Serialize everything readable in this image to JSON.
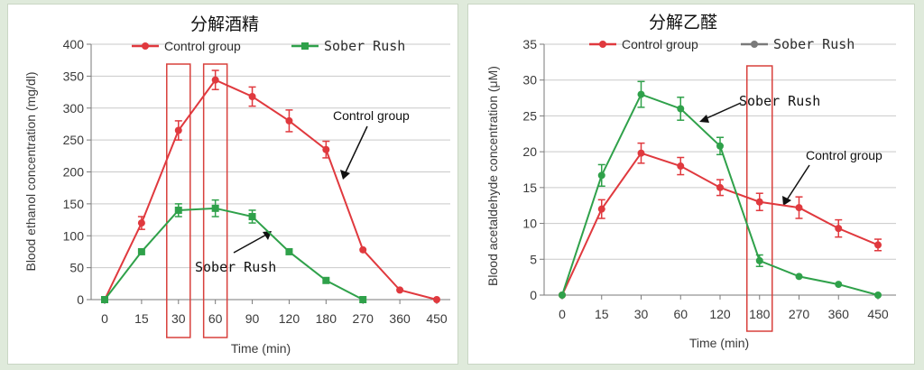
{
  "colors": {
    "control": "#e0393e",
    "sober": "#2fa14a",
    "highlight": "#d8403c",
    "grid": "#c9c9c9",
    "axis": "#7a7a7a"
  },
  "chart_data": [
    {
      "type": "line",
      "title": "分解酒精",
      "xlabel": "Time (min)",
      "ylabel": "Blood ethanol concentration (mg/dl)",
      "categories": [
        "0",
        "15",
        "30",
        "60",
        "90",
        "120",
        "180",
        "270",
        "360",
        "450"
      ],
      "ylim": [
        0,
        400
      ],
      "yticks": [
        0,
        50,
        100,
        150,
        200,
        250,
        300,
        350,
        400
      ],
      "grid": "horizontal",
      "legend": "top",
      "series": [
        {
          "name": "Control group",
          "color": "#e0393e",
          "marker": "circle",
          "x": [
            0,
            1,
            2,
            3,
            4,
            5,
            6,
            7,
            8,
            9
          ],
          "values": [
            0,
            120,
            265,
            344,
            318,
            280,
            235,
            78,
            15,
            0
          ],
          "errors": [
            0,
            10,
            15,
            15,
            15,
            17,
            13,
            0,
            0,
            0
          ]
        },
        {
          "name": "Sober Rush",
          "color": "#2fa14a",
          "marker": "square",
          "x": [
            0,
            1,
            2,
            3,
            4,
            5,
            6,
            7
          ],
          "values": [
            0,
            75,
            140,
            143,
            130,
            75,
            30,
            0
          ],
          "errors": [
            0,
            0,
            10,
            13,
            10,
            0,
            0,
            0
          ]
        }
      ],
      "highlights": [
        "30",
        "60"
      ],
      "annotations": [
        {
          "text": "Control group",
          "points_to_series": "Control group",
          "at_category": "180"
        },
        {
          "text": "Sober Rush",
          "points_to_series": "Sober Rush",
          "at_category": "90"
        }
      ]
    },
    {
      "type": "line",
      "title": "分解乙醛",
      "xlabel": "Time (min)",
      "ylabel": "Blood acetaldehyde concentration (μM)",
      "categories": [
        "0",
        "15",
        "30",
        "60",
        "120",
        "180",
        "270",
        "360",
        "450"
      ],
      "ylim": [
        0,
        35
      ],
      "yticks": [
        0,
        5,
        10,
        15,
        20,
        25,
        30,
        35
      ],
      "grid": "horizontal",
      "legend": "top",
      "series": [
        {
          "name": "Control group",
          "color": "#e0393e",
          "marker": "circle",
          "x": [
            0,
            1,
            2,
            3,
            4,
            5,
            6,
            7,
            8
          ],
          "values": [
            0,
            12,
            19.8,
            18,
            15,
            13,
            12.2,
            9.3,
            7
          ],
          "errors": [
            0,
            1.3,
            1.4,
            1.2,
            1.1,
            1.2,
            1.5,
            1.2,
            0.8
          ]
        },
        {
          "name": "Sober Rush",
          "color": "#2fa14a",
          "marker": "circle",
          "x": [
            0,
            1,
            2,
            3,
            4,
            5,
            6,
            7,
            8
          ],
          "values": [
            0,
            16.7,
            28,
            26,
            20.8,
            4.8,
            2.6,
            1.5,
            0
          ],
          "errors": [
            0,
            1.5,
            1.8,
            1.6,
            1.2,
            0.8,
            0,
            0,
            0
          ]
        }
      ],
      "highlights": [
        "180"
      ],
      "annotations": [
        {
          "text": "Sober Rush",
          "points_to_series": "Sober Rush",
          "at_category": "60"
        },
        {
          "text": "Control group",
          "points_to_series": "Control group",
          "at_category": "180"
        }
      ]
    }
  ]
}
